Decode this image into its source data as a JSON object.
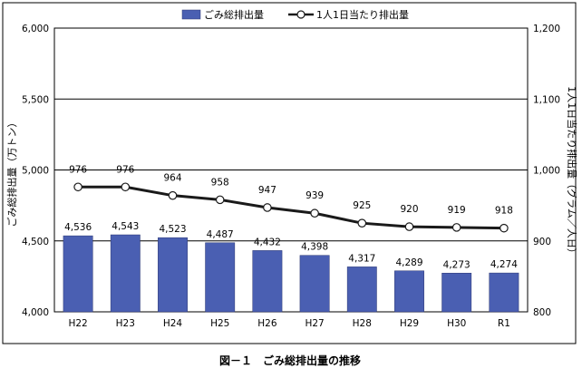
{
  "chart_data": {
    "type": "bar+line",
    "categories": [
      "H22",
      "H23",
      "H24",
      "H25",
      "H26",
      "H27",
      "H28",
      "H29",
      "H30",
      "R1"
    ],
    "series": [
      {
        "name": "ごみ総排出量",
        "kind": "bar",
        "axis": "left",
        "values": [
          4536,
          4543,
          4523,
          4487,
          4432,
          4398,
          4317,
          4289,
          4273,
          4274
        ],
        "labels": [
          "4,536",
          "4,543",
          "4,523",
          "4,487",
          "4,432",
          "4,398",
          "4,317",
          "4,289",
          "4,273",
          "4,274"
        ],
        "color": "#4a5fb2"
      },
      {
        "name": "1人1日当たり排出量",
        "kind": "line",
        "axis": "right",
        "values": [
          976,
          976,
          964,
          958,
          947,
          939,
          925,
          920,
          919,
          918
        ],
        "labels": [
          "976",
          "976",
          "964",
          "958",
          "947",
          "939",
          "925",
          "920",
          "919",
          "918"
        ],
        "color": "#1a1a1a"
      }
    ],
    "ylabel": "ごみ総排出量（万トン）",
    "y2label": "1人1日当たり排出量（グラム／人日）",
    "ylim": [
      4000,
      6000
    ],
    "y2lim": [
      800,
      1200
    ],
    "yticks": [
      "4,000",
      "4,500",
      "5,000",
      "5,500",
      "6,000"
    ],
    "y2ticks": [
      "800",
      "900",
      "1,000",
      "1,100",
      "1,200"
    ],
    "grid": "horizontal",
    "legend": "top-center"
  },
  "caption": "図－１　ごみ総排出量の推移"
}
